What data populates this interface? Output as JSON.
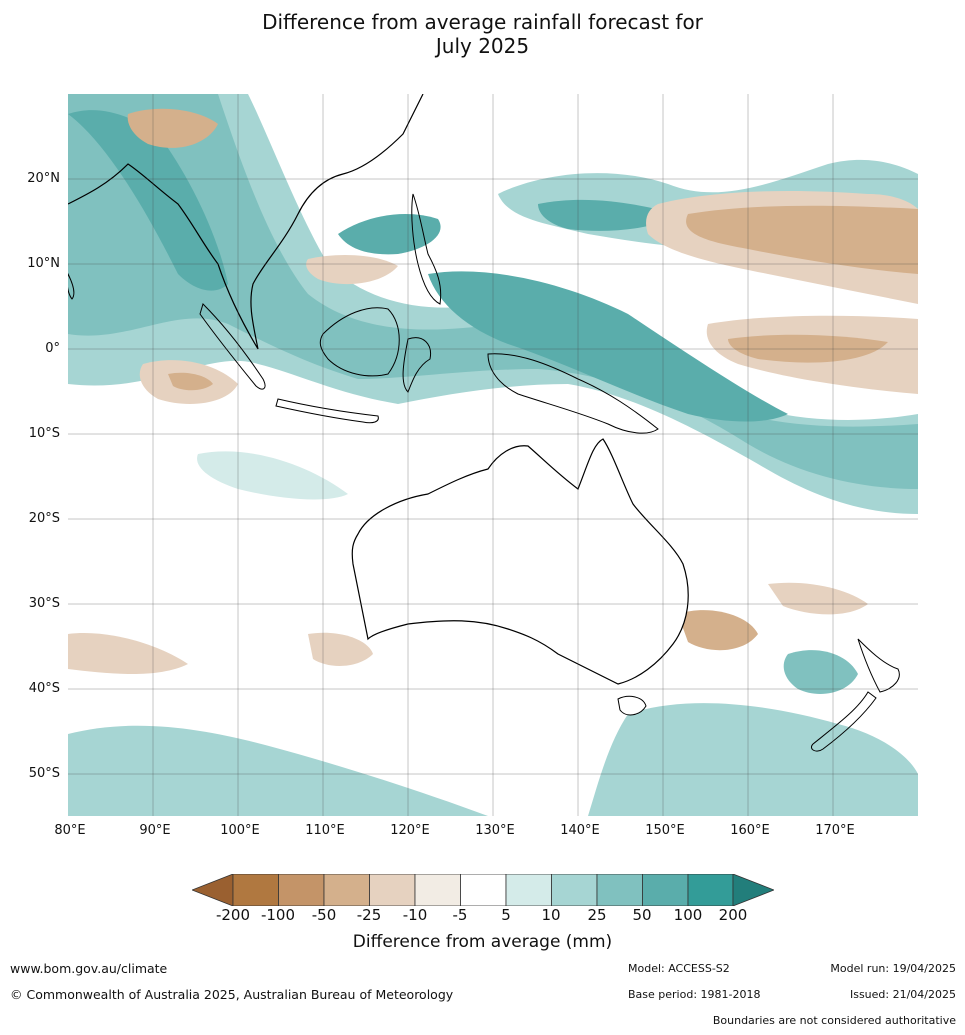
{
  "title_line1": "Difference from average rainfall forecast for",
  "title_line2": "July 2025",
  "latitude_labels": [
    "20°N",
    "10°N",
    "0°",
    "10°S",
    "20°S",
    "30°S",
    "40°S",
    "50°S"
  ],
  "longitude_labels": [
    "80°E",
    "90°E",
    "100°E",
    "110°E",
    "120°E",
    "130°E",
    "140°E",
    "150°E",
    "160°E",
    "170°E"
  ],
  "colorbar": {
    "ticks": [
      "-200",
      "-100",
      "-50",
      "-25",
      "-10",
      "-5",
      "5",
      "10",
      "25",
      "50",
      "100",
      "200"
    ],
    "colors": [
      "#9a6030",
      "#b07840",
      "#c49468",
      "#d4b08c",
      "#e6d2c0",
      "#f2ece4",
      "#ffffff",
      "#d4ebe9",
      "#a6d5d3",
      "#80c1bf",
      "#5aadab",
      "#339c98",
      "#227e7b"
    ],
    "label": "Difference from average (mm)"
  },
  "footer": {
    "website": "www.bom.gov.au/climate",
    "copyright": "© Commonwealth of Australia 2025, Australian Bureau of Meteorology",
    "model": "Model: ACCESS-S2",
    "base_period": "Base period: 1981-2018",
    "model_run": "Model run: 19/04/2025",
    "issued": "Issued: 21/04/2025",
    "boundaries_note": "Boundaries are not considered authoritative"
  }
}
